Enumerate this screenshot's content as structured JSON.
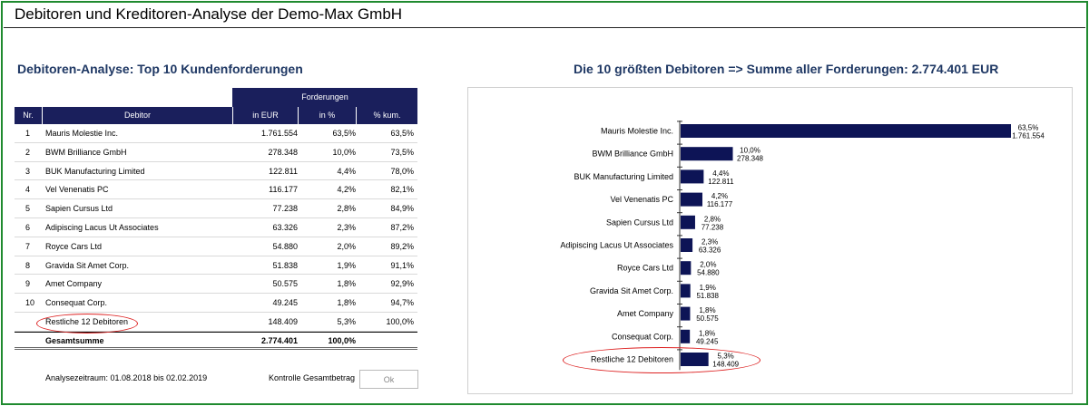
{
  "window": {
    "title": "Debitoren und Kreditoren-Analyse der Demo-Max GmbH"
  },
  "table": {
    "title": "Debitoren-Analyse: Top 10 Kundenforderungen",
    "group_header": "Forderungen",
    "columns": [
      "Nr.",
      "Debitor",
      "in EUR",
      "in %",
      "% kum."
    ],
    "rows": [
      {
        "nr": "1",
        "debitor": "Mauris Molestie Inc.",
        "eur": "1.761.554",
        "pct": "63,5%",
        "kum": "63,5%"
      },
      {
        "nr": "2",
        "debitor": "BWM Brilliance GmbH",
        "eur": "278.348",
        "pct": "10,0%",
        "kum": "73,5%"
      },
      {
        "nr": "3",
        "debitor": "BUK Manufacturing Limited",
        "eur": "122.811",
        "pct": "4,4%",
        "kum": "78,0%"
      },
      {
        "nr": "4",
        "debitor": "Vel Venenatis PC",
        "eur": "116.177",
        "pct": "4,2%",
        "kum": "82,1%"
      },
      {
        "nr": "5",
        "debitor": "Sapien Cursus Ltd",
        "eur": "77.238",
        "pct": "2,8%",
        "kum": "84,9%"
      },
      {
        "nr": "6",
        "debitor": "Adipiscing Lacus Ut Associates",
        "eur": "63.326",
        "pct": "2,3%",
        "kum": "87,2%"
      },
      {
        "nr": "7",
        "debitor": "Royce Cars Ltd",
        "eur": "54.880",
        "pct": "2,0%",
        "kum": "89,2%"
      },
      {
        "nr": "8",
        "debitor": "Gravida Sit Amet Corp.",
        "eur": "51.838",
        "pct": "1,9%",
        "kum": "91,1%"
      },
      {
        "nr": "9",
        "debitor": "Amet Company",
        "eur": "50.575",
        "pct": "1,8%",
        "kum": "92,9%"
      },
      {
        "nr": "10",
        "debitor": "Consequat Corp.",
        "eur": "49.245",
        "pct": "1,8%",
        "kum": "94,7%"
      },
      {
        "nr": "",
        "debitor": "Restliche 12 Debitoren",
        "eur": "148.409",
        "pct": "5,3%",
        "kum": "100,0%"
      }
    ],
    "total": {
      "label": "Gesamtsumme",
      "eur": "2.774.401",
      "pct": "100,0%"
    }
  },
  "footer": {
    "period_label": "Analysezeitraum: 01.08.2018 bis 02.02.2019",
    "check_label": "Kontrolle Gesamtbetrag",
    "ok_label": "Ok"
  },
  "colors": {
    "bar": "#0d1456",
    "header": "#1a1f5c",
    "title": "#1f3864",
    "highlight": "#dd2222",
    "frame": "#1f8a2f"
  },
  "chart_data": {
    "type": "bar",
    "orientation": "horizontal",
    "title": "Die 10 größten Debitoren => Summe aller Forderungen: 2.774.401 EUR",
    "categories": [
      "Mauris Molestie Inc.",
      "BWM Brilliance GmbH",
      "BUK Manufacturing Limited",
      "Vel Venenatis PC",
      "Sapien Cursus Ltd",
      "Adipiscing Lacus Ut Associates",
      "Royce Cars Ltd",
      "Gravida Sit Amet Corp.",
      "Amet Company",
      "Consequat Corp.",
      "Restliche 12 Debitoren"
    ],
    "values": [
      1761554,
      278348,
      122811,
      116177,
      77238,
      63326,
      54880,
      51838,
      50575,
      49245,
      148409
    ],
    "value_labels": [
      "1.761.554",
      "278.348",
      "122.811",
      "116.177",
      "77.238",
      "63.326",
      "54.880",
      "51.838",
      "50.575",
      "49.245",
      "148.409"
    ],
    "percent_labels": [
      "63,5%",
      "10,0%",
      "4,4%",
      "4,2%",
      "2,8%",
      "2,3%",
      "2,0%",
      "1,9%",
      "1,8%",
      "1,8%",
      "5,3%"
    ],
    "highlighted_category": "Restliche 12 Debitoren"
  }
}
